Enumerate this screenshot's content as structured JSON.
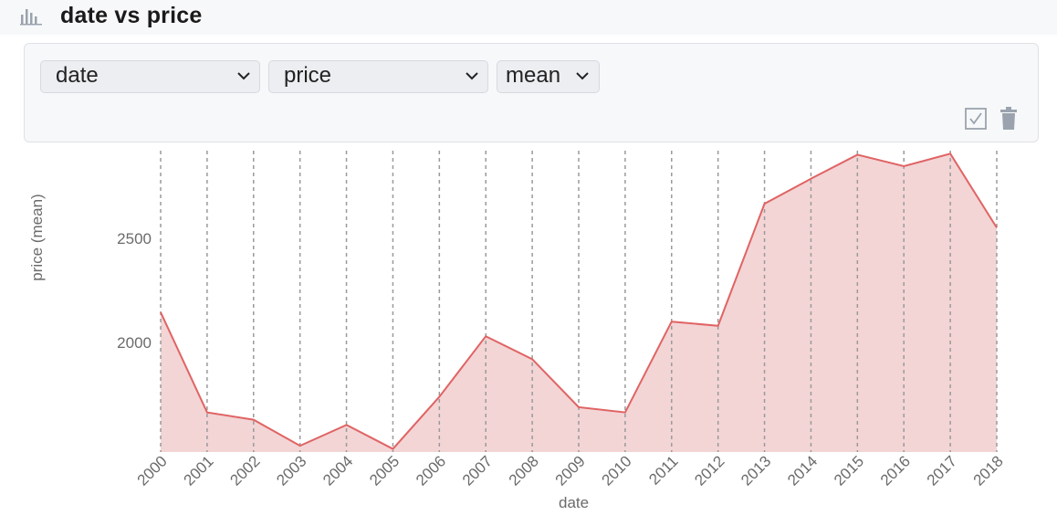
{
  "header": {
    "title": "date vs price",
    "icon": "bar-chart-icon"
  },
  "controls": {
    "x_select": "date",
    "y_select": "price",
    "agg_select": "mean",
    "check_icon": "checkbox-icon",
    "trash_icon": "trash-icon"
  },
  "chart_data": {
    "type": "area",
    "x": [
      "2000",
      "2001",
      "2002",
      "2003",
      "2004",
      "2005",
      "2006",
      "2007",
      "2008",
      "2009",
      "2010",
      "2011",
      "2012",
      "2013",
      "2014",
      "2015",
      "2016",
      "2017",
      "2018"
    ],
    "values": [
      2145,
      1665,
      1630,
      1505,
      1605,
      1490,
      1740,
      2030,
      1920,
      1690,
      1665,
      2100,
      2080,
      2665,
      2785,
      2900,
      2845,
      2905,
      2550
    ],
    "xlabel": "date",
    "ylabel": "price (mean)",
    "yticks": [
      2000,
      2500
    ],
    "ylim": [
      1475,
      2915
    ],
    "grid": "vertical dashed",
    "colors": {
      "line": "#e06464",
      "fill": "#f3d5d6",
      "grid": "#9a9a9a"
    }
  }
}
